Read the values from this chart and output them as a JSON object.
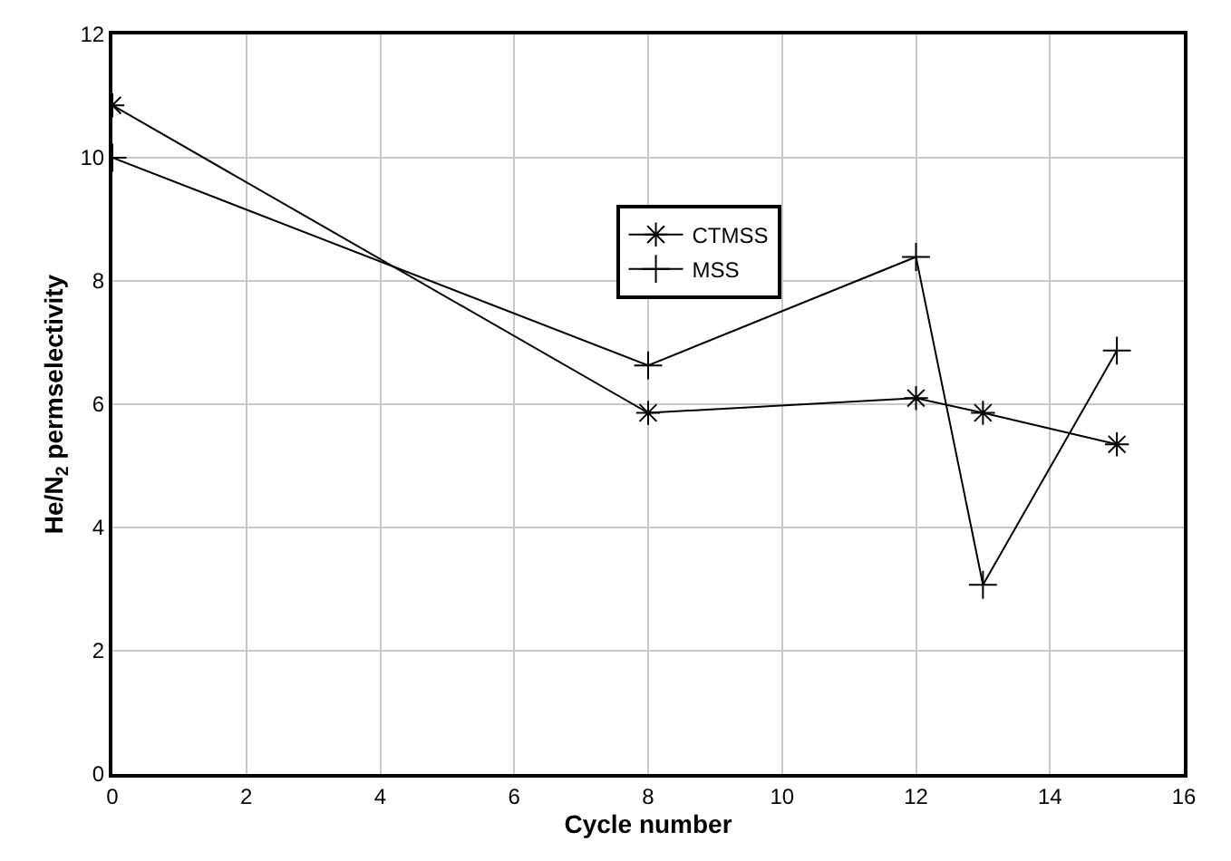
{
  "chart_data": {
    "type": "line",
    "xlabel": "Cycle number",
    "ylabel": "He/N$_{2}$ permselectivity",
    "x": [
      0,
      8,
      12,
      13,
      15
    ],
    "series": [
      {
        "name": "CTMSS",
        "color": "#000000",
        "marker": "cross",
        "values": [
          10.85,
          5.86,
          6.1,
          5.86,
          5.35
        ]
      },
      {
        "name": "MSS",
        "color": "#000000",
        "marker": "cross",
        "values": [
          10.0,
          6.63,
          8.39,
          3.07,
          6.87
        ]
      }
    ],
    "xlim": [
      0,
      16
    ],
    "xticks": [
      0,
      2,
      4,
      6,
      8,
      10,
      12,
      14,
      16
    ],
    "ylim": [
      0,
      12
    ],
    "yticks": [
      0,
      2,
      4,
      6,
      8,
      10,
      12
    ],
    "grid": true,
    "legend": "top",
    "line_style": "solid"
  }
}
